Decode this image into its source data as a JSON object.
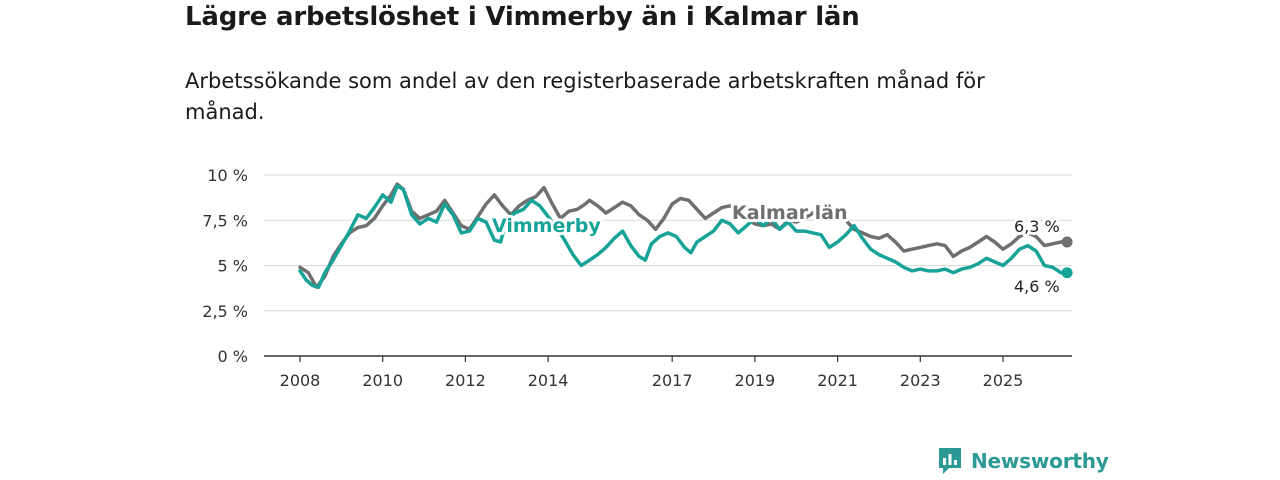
{
  "header": {
    "title": "Lägre arbetslöshet i Vimmerby än i Kalmar län",
    "subtitle": "Arbetssökande som andel av den registerbaserade arbetskraften månad för månad."
  },
  "branding": {
    "name": "Newsworthy",
    "icon": "bar-chart-speech-icon",
    "color": "#2b9a96"
  },
  "chart_data": {
    "type": "line",
    "title": "Lägre arbetslöshet i Vimmerby än i Kalmar län",
    "subtitle": "Arbetssökande som andel av den registerbaserade arbetskraften månad för månad.",
    "xlabel": "",
    "ylabel": "",
    "xlim": [
      2007.9,
      2026.8
    ],
    "ylim": [
      0,
      10
    ],
    "grid": true,
    "y_ticks": [
      0,
      2.5,
      5,
      7.5,
      10
    ],
    "y_tick_labels": [
      "0 %",
      "2,5 %",
      "5 %",
      "7,5 %",
      "10 %"
    ],
    "x_ticks": [
      2008,
      2010,
      2012,
      2014,
      2017,
      2019,
      2021,
      2023,
      2025
    ],
    "x_tick_labels": [
      "2008",
      "2010",
      "2012",
      "2014",
      "2017",
      "2019",
      "2021",
      "2023",
      "2025"
    ],
    "series": [
      {
        "name": "Kalmar län",
        "color": "#6f6f6f",
        "label_text": "Kalmar län",
        "end_label": "6,3 %",
        "points": [
          [
            2008.0,
            4.9
          ],
          [
            2008.2,
            4.6
          ],
          [
            2008.4,
            3.8
          ],
          [
            2008.6,
            4.4
          ],
          [
            2008.8,
            5.5
          ],
          [
            2009.0,
            6.2
          ],
          [
            2009.2,
            6.8
          ],
          [
            2009.4,
            7.1
          ],
          [
            2009.6,
            7.2
          ],
          [
            2009.8,
            7.6
          ],
          [
            2010.0,
            8.3
          ],
          [
            2010.2,
            8.9
          ],
          [
            2010.35,
            9.5
          ],
          [
            2010.5,
            9.2
          ],
          [
            2010.7,
            8.0
          ],
          [
            2010.9,
            7.6
          ],
          [
            2011.1,
            7.8
          ],
          [
            2011.3,
            8.0
          ],
          [
            2011.5,
            8.6
          ],
          [
            2011.7,
            7.9
          ],
          [
            2011.9,
            7.2
          ],
          [
            2012.1,
            7.0
          ],
          [
            2012.3,
            7.7
          ],
          [
            2012.5,
            8.4
          ],
          [
            2012.7,
            8.9
          ],
          [
            2012.9,
            8.3
          ],
          [
            2013.1,
            7.8
          ],
          [
            2013.3,
            8.3
          ],
          [
            2013.5,
            8.6
          ],
          [
            2013.7,
            8.8
          ],
          [
            2013.9,
            9.3
          ],
          [
            2014.1,
            8.4
          ],
          [
            2014.3,
            7.6
          ],
          [
            2014.5,
            8.0
          ],
          [
            2014.7,
            8.1
          ],
          [
            2014.9,
            8.4
          ],
          [
            2015.0,
            8.6
          ],
          [
            2015.2,
            8.3
          ],
          [
            2015.4,
            7.9
          ],
          [
            2015.6,
            8.2
          ],
          [
            2015.8,
            8.5
          ],
          [
            2016.0,
            8.3
          ],
          [
            2016.2,
            7.8
          ],
          [
            2016.4,
            7.5
          ],
          [
            2016.6,
            7.0
          ],
          [
            2016.8,
            7.6
          ],
          [
            2017.0,
            8.4
          ],
          [
            2017.2,
            8.7
          ],
          [
            2017.4,
            8.6
          ],
          [
            2017.6,
            8.1
          ],
          [
            2017.8,
            7.6
          ],
          [
            2018.0,
            7.9
          ],
          [
            2018.2,
            8.2
          ],
          [
            2018.4,
            8.3
          ],
          [
            2018.6,
            8.0
          ],
          [
            2018.8,
            7.6
          ],
          [
            2019.0,
            7.3
          ],
          [
            2019.2,
            7.2
          ],
          [
            2019.4,
            7.3
          ],
          [
            2019.6,
            7.0
          ],
          [
            2019.8,
            7.5
          ],
          [
            2020.0,
            7.4
          ],
          [
            2020.2,
            7.6
          ],
          [
            2020.4,
            7.9
          ],
          [
            2020.6,
            8.1
          ],
          [
            2020.8,
            8.3
          ],
          [
            2021.0,
            7.9
          ],
          [
            2021.2,
            7.5
          ],
          [
            2021.4,
            7.0
          ],
          [
            2021.6,
            6.8
          ],
          [
            2021.8,
            6.6
          ],
          [
            2022.0,
            6.5
          ],
          [
            2022.2,
            6.7
          ],
          [
            2022.4,
            6.3
          ],
          [
            2022.6,
            5.8
          ],
          [
            2022.8,
            5.9
          ],
          [
            2023.0,
            6.0
          ],
          [
            2023.2,
            6.1
          ],
          [
            2023.4,
            6.2
          ],
          [
            2023.6,
            6.1
          ],
          [
            2023.8,
            5.5
          ],
          [
            2024.0,
            5.8
          ],
          [
            2024.2,
            6.0
          ],
          [
            2024.4,
            6.3
          ],
          [
            2024.6,
            6.6
          ],
          [
            2024.8,
            6.3
          ],
          [
            2025.0,
            5.9
          ],
          [
            2025.2,
            6.2
          ],
          [
            2025.4,
            6.6
          ],
          [
            2025.6,
            6.8
          ],
          [
            2025.8,
            6.6
          ],
          [
            2026.0,
            6.1
          ],
          [
            2026.2,
            6.2
          ],
          [
            2026.4,
            6.3
          ],
          [
            2026.55,
            6.3
          ]
        ]
      },
      {
        "name": "Vimmerby",
        "color": "#17a398",
        "label_text": "Vimmerby",
        "end_label": "4,6 %",
        "points": [
          [
            2008.0,
            4.7
          ],
          [
            2008.15,
            4.2
          ],
          [
            2008.3,
            3.9
          ],
          [
            2008.45,
            3.8
          ],
          [
            2008.6,
            4.6
          ],
          [
            2008.8,
            5.3
          ],
          [
            2009.0,
            6.1
          ],
          [
            2009.2,
            6.9
          ],
          [
            2009.4,
            7.8
          ],
          [
            2009.6,
            7.6
          ],
          [
            2009.8,
            8.2
          ],
          [
            2010.0,
            8.9
          ],
          [
            2010.2,
            8.5
          ],
          [
            2010.35,
            9.4
          ],
          [
            2010.5,
            9.2
          ],
          [
            2010.7,
            7.8
          ],
          [
            2010.9,
            7.3
          ],
          [
            2011.1,
            7.6
          ],
          [
            2011.3,
            7.4
          ],
          [
            2011.5,
            8.4
          ],
          [
            2011.7,
            7.8
          ],
          [
            2011.9,
            6.8
          ],
          [
            2012.1,
            6.9
          ],
          [
            2012.3,
            7.6
          ],
          [
            2012.5,
            7.4
          ],
          [
            2012.7,
            6.4
          ],
          [
            2012.85,
            6.3
          ],
          [
            2013.0,
            7.6
          ],
          [
            2013.2,
            7.9
          ],
          [
            2013.4,
            8.1
          ],
          [
            2013.6,
            8.6
          ],
          [
            2013.8,
            8.3
          ],
          [
            2014.0,
            7.7
          ],
          [
            2014.2,
            7.1
          ],
          [
            2014.4,
            6.4
          ],
          [
            2014.6,
            5.6
          ],
          [
            2014.8,
            5.0
          ],
          [
            2015.0,
            5.3
          ],
          [
            2015.2,
            5.6
          ],
          [
            2015.4,
            6.0
          ],
          [
            2015.6,
            6.5
          ],
          [
            2015.8,
            6.9
          ],
          [
            2016.0,
            6.1
          ],
          [
            2016.2,
            5.5
          ],
          [
            2016.35,
            5.3
          ],
          [
            2016.5,
            6.2
          ],
          [
            2016.7,
            6.6
          ],
          [
            2016.9,
            6.8
          ],
          [
            2017.1,
            6.6
          ],
          [
            2017.3,
            6.0
          ],
          [
            2017.45,
            5.7
          ],
          [
            2017.6,
            6.3
          ],
          [
            2017.8,
            6.6
          ],
          [
            2018.0,
            6.9
          ],
          [
            2018.2,
            7.5
          ],
          [
            2018.4,
            7.3
          ],
          [
            2018.6,
            6.8
          ],
          [
            2018.8,
            7.2
          ],
          [
            2019.0,
            7.6
          ],
          [
            2019.2,
            7.2
          ],
          [
            2019.4,
            7.6
          ],
          [
            2019.6,
            7.0
          ],
          [
            2019.8,
            7.4
          ],
          [
            2020.0,
            6.9
          ],
          [
            2020.2,
            6.9
          ],
          [
            2020.4,
            6.8
          ],
          [
            2020.6,
            6.7
          ],
          [
            2020.8,
            6.0
          ],
          [
            2021.0,
            6.3
          ],
          [
            2021.2,
            6.7
          ],
          [
            2021.4,
            7.2
          ],
          [
            2021.6,
            6.5
          ],
          [
            2021.8,
            5.9
          ],
          [
            2022.0,
            5.6
          ],
          [
            2022.2,
            5.4
          ],
          [
            2022.4,
            5.2
          ],
          [
            2022.6,
            4.9
          ],
          [
            2022.8,
            4.7
          ],
          [
            2023.0,
            4.8
          ],
          [
            2023.2,
            4.7
          ],
          [
            2023.4,
            4.7
          ],
          [
            2023.6,
            4.8
          ],
          [
            2023.8,
            4.6
          ],
          [
            2024.0,
            4.8
          ],
          [
            2024.2,
            4.9
          ],
          [
            2024.4,
            5.1
          ],
          [
            2024.6,
            5.4
          ],
          [
            2024.8,
            5.2
          ],
          [
            2025.0,
            5.0
          ],
          [
            2025.2,
            5.4
          ],
          [
            2025.4,
            5.9
          ],
          [
            2025.6,
            6.1
          ],
          [
            2025.8,
            5.8
          ],
          [
            2026.0,
            5.0
          ],
          [
            2026.2,
            4.9
          ],
          [
            2026.4,
            4.6
          ],
          [
            2026.55,
            4.6
          ]
        ]
      }
    ]
  }
}
